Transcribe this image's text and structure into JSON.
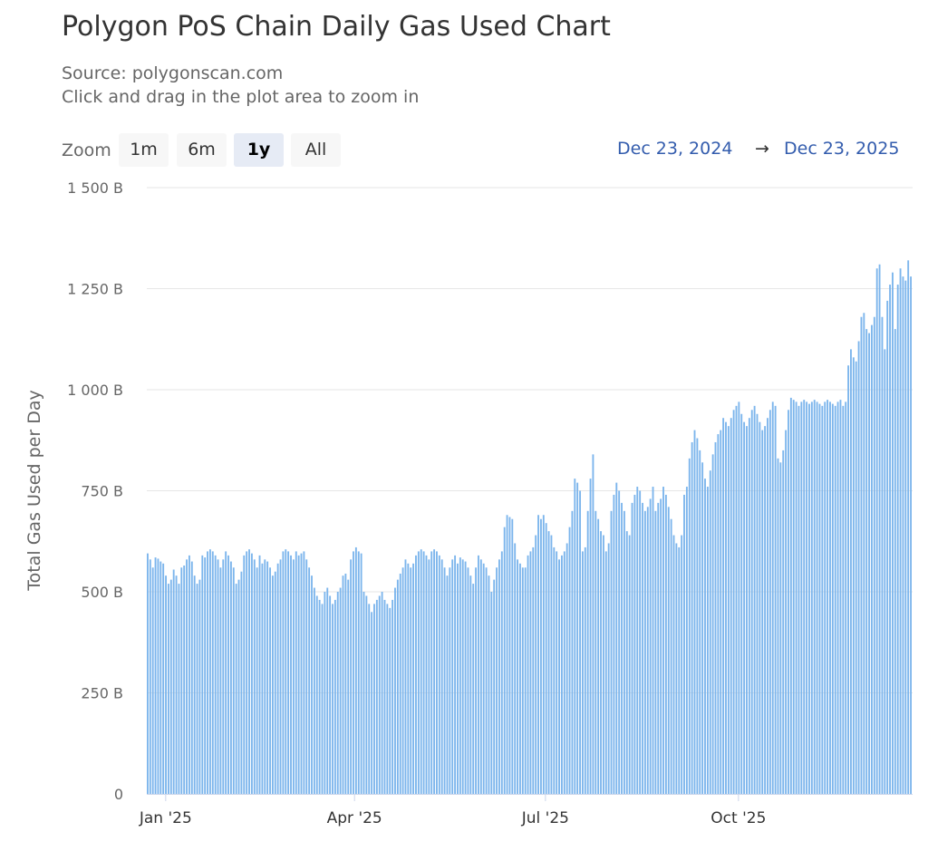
{
  "header": {
    "title": "Polygon PoS Chain Daily Gas Used Chart",
    "source": "Source: polygonscan.com",
    "hint": "Click and drag in the plot area to zoom in"
  },
  "zoom": {
    "label": "Zoom",
    "buttons": [
      {
        "label": "1m",
        "active": false
      },
      {
        "label": "6m",
        "active": false
      },
      {
        "label": "1y",
        "active": true
      },
      {
        "label": "All",
        "active": false
      }
    ]
  },
  "range": {
    "from": "Dec 23, 2024",
    "arrow": "→",
    "to": "Dec 23, 2025"
  },
  "colors": {
    "bar": "#7cb5ec",
    "grid": "#e6e6e6",
    "axis": "#ccd6eb"
  },
  "chart_data": {
    "type": "bar",
    "title": "Polygon PoS Chain Daily Gas Used Chart",
    "ylabel": "Total Gas Used per Day",
    "xlabel": "",
    "y_unit": "B",
    "ylim": [
      0,
      1500
    ],
    "yticks": [
      0,
      250,
      500,
      750,
      1000,
      1250,
      1500
    ],
    "ytick_labels": [
      "0",
      "250 B",
      "500 B",
      "750 B",
      "1 000 B",
      "1 250 B",
      "1 500 B"
    ],
    "x_start": "2024-12-23",
    "x_end": "2025-12-23",
    "xticks": [
      {
        "date": "2025-01-01",
        "label": "Jan '25"
      },
      {
        "date": "2025-04-01",
        "label": "Apr '25"
      },
      {
        "date": "2025-07-01",
        "label": "Jul '25"
      },
      {
        "date": "2025-10-01",
        "label": "Oct '25"
      }
    ],
    "grid": true,
    "legend": "none",
    "series": [
      {
        "values": [
          595,
          580,
          560,
          585,
          582,
          575,
          570,
          540,
          520,
          530,
          555,
          540,
          520,
          560,
          565,
          580,
          590,
          575,
          540,
          520,
          530,
          590,
          585,
          600,
          605,
          600,
          590,
          580,
          560,
          580,
          600,
          590,
          575,
          560,
          520,
          530,
          550,
          590,
          600,
          605,
          595,
          580,
          560,
          590,
          570,
          580,
          575,
          560,
          540,
          550,
          570,
          580,
          600,
          605,
          600,
          590,
          580,
          600,
          590,
          595,
          600,
          580,
          560,
          540,
          510,
          490,
          480,
          470,
          500,
          510,
          490,
          470,
          480,
          500,
          510,
          540,
          545,
          530,
          580,
          600,
          610,
          600,
          595,
          500,
          490,
          470,
          450,
          470,
          480,
          490,
          500,
          480,
          470,
          460,
          480,
          510,
          530,
          545,
          560,
          580,
          570,
          560,
          570,
          590,
          600,
          605,
          600,
          590,
          580,
          600,
          605,
          600,
          590,
          580,
          560,
          540,
          560,
          580,
          590,
          570,
          585,
          580,
          575,
          560,
          540,
          520,
          560,
          590,
          580,
          570,
          560,
          540,
          500,
          530,
          560,
          580,
          600,
          660,
          690,
          685,
          680,
          620,
          580,
          570,
          560,
          560,
          590,
          600,
          610,
          640,
          690,
          680,
          690,
          670,
          650,
          640,
          610,
          600,
          580,
          590,
          600,
          620,
          660,
          700,
          780,
          770,
          750,
          600,
          610,
          700,
          780,
          840,
          700,
          680,
          650,
          640,
          600,
          620,
          700,
          740,
          770,
          750,
          720,
          700,
          650,
          640,
          720,
          740,
          760,
          750,
          720,
          700,
          710,
          730,
          760,
          700,
          720,
          730,
          760,
          740,
          710,
          680,
          640,
          620,
          610,
          640,
          740,
          760,
          830,
          870,
          900,
          880,
          850,
          820,
          780,
          760,
          800,
          840,
          870,
          890,
          900,
          930,
          920,
          910,
          930,
          950,
          960,
          970,
          940,
          920,
          910,
          930,
          950,
          960,
          940,
          920,
          900,
          910,
          930,
          950,
          970,
          960,
          830,
          820,
          850,
          900,
          950,
          980,
          975,
          970,
          960,
          970,
          975,
          970,
          965,
          970,
          975,
          970,
          965,
          960,
          970,
          975,
          970,
          965,
          960,
          970,
          975,
          960,
          970,
          1060,
          1100,
          1080,
          1070,
          1120,
          1180,
          1190,
          1150,
          1140,
          1160,
          1180,
          1300,
          1310,
          1180,
          1100,
          1220,
          1260,
          1290,
          1150,
          1260,
          1300,
          1280,
          1270,
          1320,
          1280
        ]
      }
    ]
  }
}
